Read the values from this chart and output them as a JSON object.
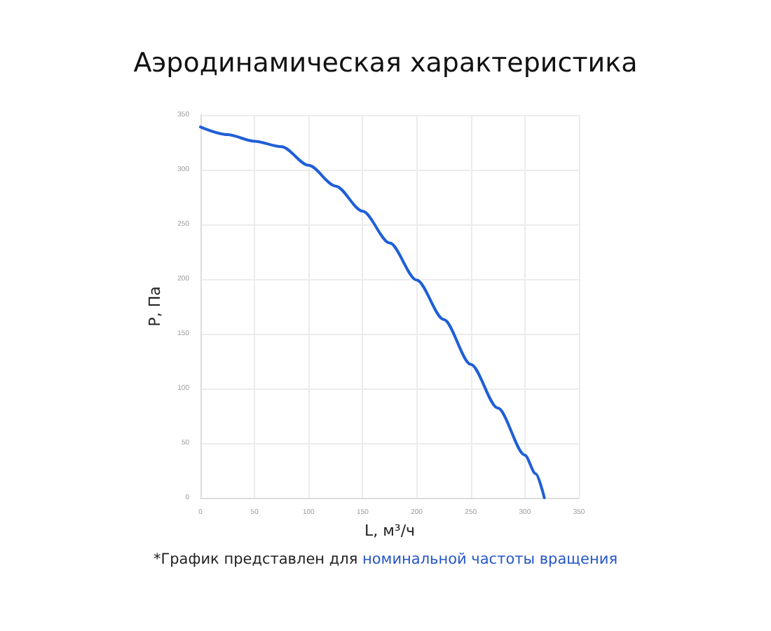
{
  "chart_data": {
    "type": "line",
    "title": "Аэродинамическая характеристика",
    "xlabel": "L, м³/ч",
    "ylabel": "P, Па",
    "annotations": [
      "*График представлен для ",
      "номинальной частоты вращения"
    ],
    "series": [
      {
        "color": "#1f5fd6",
        "x": [
          0,
          25,
          50,
          75,
          100,
          125,
          150,
          175,
          200,
          225,
          250,
          275,
          300,
          310,
          318
        ],
        "values": [
          339,
          332,
          326,
          321,
          304,
          285,
          262,
          233,
          199,
          163,
          122,
          82,
          39,
          22,
          0
        ]
      }
    ],
    "xlim": [
      0,
      350
    ],
    "xticks": [
      0,
      50,
      100,
      150,
      200,
      250,
      300,
      350
    ],
    "ylim": [
      0,
      350
    ],
    "yticks": [
      0,
      50,
      100,
      150,
      200,
      250,
      300,
      350
    ],
    "grid": true,
    "marker": "none",
    "line_style": "solid"
  }
}
